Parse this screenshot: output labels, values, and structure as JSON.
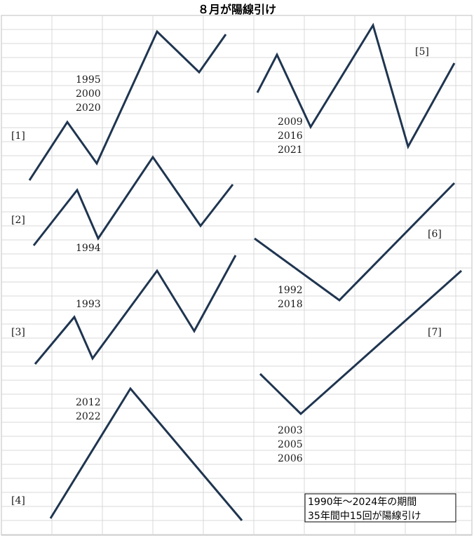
{
  "chart_data": {
    "type": "line",
    "title": "８月が陽線引け",
    "grid": true,
    "line_color": "#1f3550",
    "grid_color": "#d9d9d9",
    "patterns": [
      {
        "label": "[1]",
        "years": [
          "1995",
          "2000",
          "2020"
        ]
      },
      {
        "label": "[2]",
        "years": [
          "1994"
        ]
      },
      {
        "label": "[3]",
        "years": [
          "1993"
        ]
      },
      {
        "label": "[4]",
        "years": [
          "2012",
          "2022"
        ]
      },
      {
        "label": "[5]",
        "years": [
          "2009",
          "2016",
          "2021"
        ]
      },
      {
        "label": "[6]",
        "years": [
          "1992",
          "2018"
        ]
      },
      {
        "label": "[7]",
        "years": [
          "2003",
          "2005",
          "2006"
        ]
      }
    ],
    "summary": [
      "1990年～2024年の期間",
      "35年間中15回が陽線引け"
    ]
  }
}
